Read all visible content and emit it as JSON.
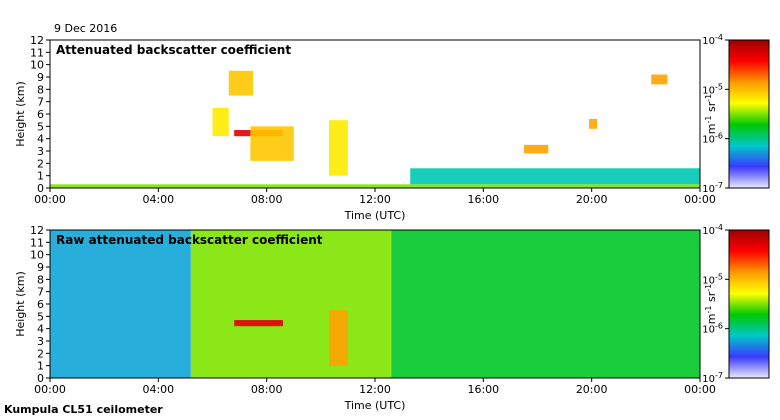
{
  "date": "9 Dec 2016",
  "footer": "Kumpula CL51 ceilometer",
  "chart_data": [
    {
      "type": "heatmap",
      "title": "Attenuated backscatter coefficient",
      "xlabel": "Time (UTC)",
      "ylabel": "Height (km)",
      "xticks": [
        "00:00",
        "04:00",
        "08:00",
        "12:00",
        "16:00",
        "20:00",
        "00:00"
      ],
      "xlim_hours": [
        0,
        24
      ],
      "ylim": [
        0,
        12
      ],
      "yticks": [
        0,
        1,
        2,
        3,
        4,
        5,
        6,
        7,
        8,
        9,
        10,
        11,
        12
      ],
      "colorbar": {
        "label": "m-1 sr-1",
        "scale": "log",
        "range": [
          1e-07,
          0.0001
        ],
        "ticks": [
          "10-7",
          "10-6",
          "10-5",
          "10-4"
        ],
        "colormap": [
          "#e8e8ff",
          "#3a3aff",
          "#00c8c8",
          "#00c800",
          "#ffff00",
          "#ff9900",
          "#ff0000",
          "#9c0000"
        ]
      },
      "features": [
        {
          "t0": 0,
          "t1": 24,
          "h0": 0,
          "h1": 0.3,
          "level": 0.5
        },
        {
          "t0": 6.0,
          "t1": 6.6,
          "h0": 4.2,
          "h1": 6.5,
          "level": 0.6
        },
        {
          "t0": 6.6,
          "t1": 7.5,
          "h0": 7.5,
          "h1": 9.5,
          "level": 0.65
        },
        {
          "t0": 6.8,
          "t1": 8.6,
          "h0": 4.2,
          "h1": 4.7,
          "level": 0.9
        },
        {
          "t0": 7.4,
          "t1": 9.0,
          "h0": 2.2,
          "h1": 5.0,
          "level": 0.65
        },
        {
          "t0": 10.3,
          "t1": 11.0,
          "h0": 1.0,
          "h1": 5.5,
          "level": 0.6
        },
        {
          "t0": 13.3,
          "t1": 24,
          "h0": 0.3,
          "h1": 1.6,
          "level": 0.3
        },
        {
          "t0": 17.5,
          "t1": 18.4,
          "h0": 2.8,
          "h1": 3.5,
          "level": 0.7
        },
        {
          "t0": 19.9,
          "t1": 20.2,
          "h0": 4.8,
          "h1": 5.6,
          "level": 0.7
        },
        {
          "t0": 22.2,
          "t1": 22.8,
          "h0": 8.4,
          "h1": 9.2,
          "level": 0.7
        }
      ]
    },
    {
      "type": "heatmap",
      "title": "Raw attenuated backscatter coefficient",
      "xlabel": "Time (UTC)",
      "ylabel": "Height (km)",
      "xticks": [
        "00:00",
        "04:00",
        "08:00",
        "12:00",
        "16:00",
        "20:00",
        "00:00"
      ],
      "xlim_hours": [
        0,
        24
      ],
      "ylim": [
        0,
        12
      ],
      "yticks": [
        0,
        1,
        2,
        3,
        4,
        5,
        6,
        7,
        8,
        9,
        10,
        11,
        12
      ],
      "colorbar": {
        "label": "m-1 sr-1",
        "scale": "log",
        "range": [
          1e-07,
          0.0001
        ],
        "ticks": [
          "10-7",
          "10-6",
          "10-5",
          "10-4"
        ],
        "colormap": [
          "#e8e8ff",
          "#3a3aff",
          "#00c8c8",
          "#00c800",
          "#ffff00",
          "#ff9900",
          "#ff0000",
          "#9c0000"
        ]
      },
      "features": [
        {
          "t0": 0,
          "t1": 5.2,
          "h0": 0,
          "h1": 12,
          "level": 0.25
        },
        {
          "t0": 5.2,
          "t1": 12.6,
          "h0": 0,
          "h1": 12,
          "level": 0.5
        },
        {
          "t0": 12.6,
          "t1": 24,
          "h0": 0,
          "h1": 12,
          "level": 0.4
        },
        {
          "t0": 6.8,
          "t1": 8.6,
          "h0": 4.2,
          "h1": 4.7,
          "level": 0.9
        },
        {
          "t0": 10.3,
          "t1": 11.0,
          "h0": 1.0,
          "h1": 5.5,
          "level": 0.7
        }
      ]
    }
  ]
}
